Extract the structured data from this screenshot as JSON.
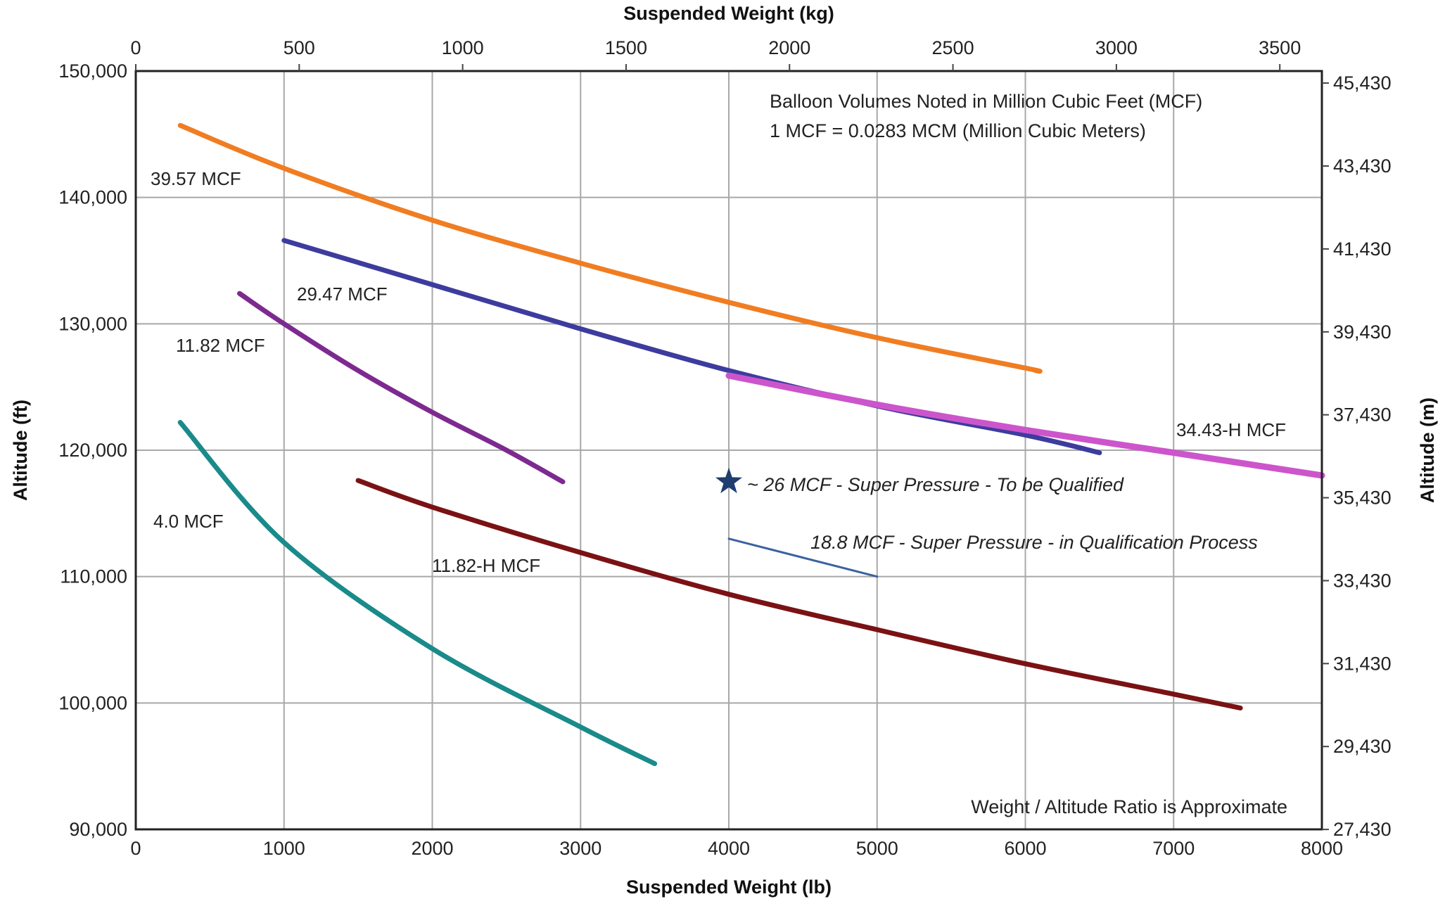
{
  "chart_data": {
    "type": "line",
    "x_bottom": {
      "label": "Suspended Weight (lb)",
      "range": [
        0,
        8000
      ],
      "ticks": [
        0,
        1000,
        2000,
        3000,
        4000,
        5000,
        6000,
        7000,
        8000
      ],
      "tick_labels": [
        "0",
        "1000",
        "2000",
        "3000",
        "4000",
        "5000",
        "6000",
        "7000",
        "8000"
      ]
    },
    "x_top": {
      "label": "Suspended Weight (kg)",
      "ticks": [
        0,
        500,
        1000,
        1500,
        2000,
        2500,
        3000,
        3500
      ],
      "tick_labels": [
        "0",
        "500",
        "1000",
        "1500",
        "2000",
        "2500",
        "3000",
        "3500"
      ]
    },
    "y_left": {
      "label": "Altitude (ft)",
      "range": [
        90000,
        150000
      ],
      "ticks": [
        90000,
        100000,
        110000,
        120000,
        130000,
        140000,
        150000
      ],
      "tick_labels": [
        "90,000",
        "100,000",
        "110,000",
        "120,000",
        "130,000",
        "140,000",
        "150,000"
      ]
    },
    "y_right": {
      "label": "Altitude (m)",
      "ticks": [
        27430,
        29430,
        31430,
        33430,
        35430,
        37430,
        39430,
        41430,
        43430,
        45430
      ],
      "tick_labels": [
        "27,430",
        "29,430",
        "31,430",
        "33,430",
        "35,430",
        "37,430",
        "39,430",
        "41,430",
        "43,430",
        "45,430"
      ]
    },
    "grid": true,
    "series": [
      {
        "name": "39.57 MCF",
        "color": "#f07d22",
        "points": [
          [
            300,
            145700
          ],
          [
            1000,
            142300
          ],
          [
            2000,
            138200
          ],
          [
            3000,
            134800
          ],
          [
            4000,
            131700
          ],
          [
            5000,
            128900
          ],
          [
            6000,
            126500
          ],
          [
            6070,
            126300
          ]
        ]
      },
      {
        "name": "29.47 MCF",
        "color": "#3d3c9e",
        "points": [
          [
            1000,
            136600
          ],
          [
            2000,
            133100
          ],
          [
            3000,
            129600
          ],
          [
            4000,
            126300
          ],
          [
            5000,
            123500
          ],
          [
            6000,
            121200
          ],
          [
            6500,
            119800
          ]
        ]
      },
      {
        "name": "11.82 MCF",
        "color": "#7d2a90",
        "points": [
          [
            700,
            132400
          ],
          [
            1000,
            130000
          ],
          [
            1500,
            126300
          ],
          [
            2000,
            123000
          ],
          [
            2500,
            120000
          ],
          [
            2880,
            117500
          ]
        ]
      },
      {
        "name": "4.0 MCF",
        "color": "#1a8a8a",
        "points": [
          [
            300,
            122200
          ],
          [
            1000,
            112700
          ],
          [
            2000,
            104300
          ],
          [
            3000,
            98100
          ],
          [
            3500,
            95200
          ]
        ]
      },
      {
        "name": "11.82-H MCF",
        "color": "#7a1214",
        "points": [
          [
            1500,
            117600
          ],
          [
            2000,
            115500
          ],
          [
            3000,
            111900
          ],
          [
            4000,
            108600
          ],
          [
            5000,
            105800
          ],
          [
            6000,
            103100
          ],
          [
            7000,
            100700
          ],
          [
            7450,
            99600
          ]
        ]
      },
      {
        "name": "34.43-H MCF",
        "color": "#cc55cc",
        "points": [
          [
            4000,
            125900
          ],
          [
            5000,
            123600
          ],
          [
            6000,
            121600
          ],
          [
            7000,
            119800
          ],
          [
            8000,
            118000
          ]
        ]
      },
      {
        "name": "18.8 MCF - Super Pressure - in Qualification  Process",
        "color": "#3b62a0",
        "points": [
          [
            4000,
            113000
          ],
          [
            5000,
            110000
          ]
        ]
      }
    ],
    "markers": [
      {
        "name": "~ 26 MCF - Super Pressure - To be Qualified",
        "shape": "star",
        "color": "#1f3d6e",
        "x": 4000,
        "y": 117500
      }
    ],
    "annotations": [
      "Balloon Volumes Noted in Million Cubic Feet (MCF)",
      "1 MCF = 0.0283 MCM (Million Cubic Meters)",
      "Weight / Altitude Ratio is Approximate"
    ]
  }
}
